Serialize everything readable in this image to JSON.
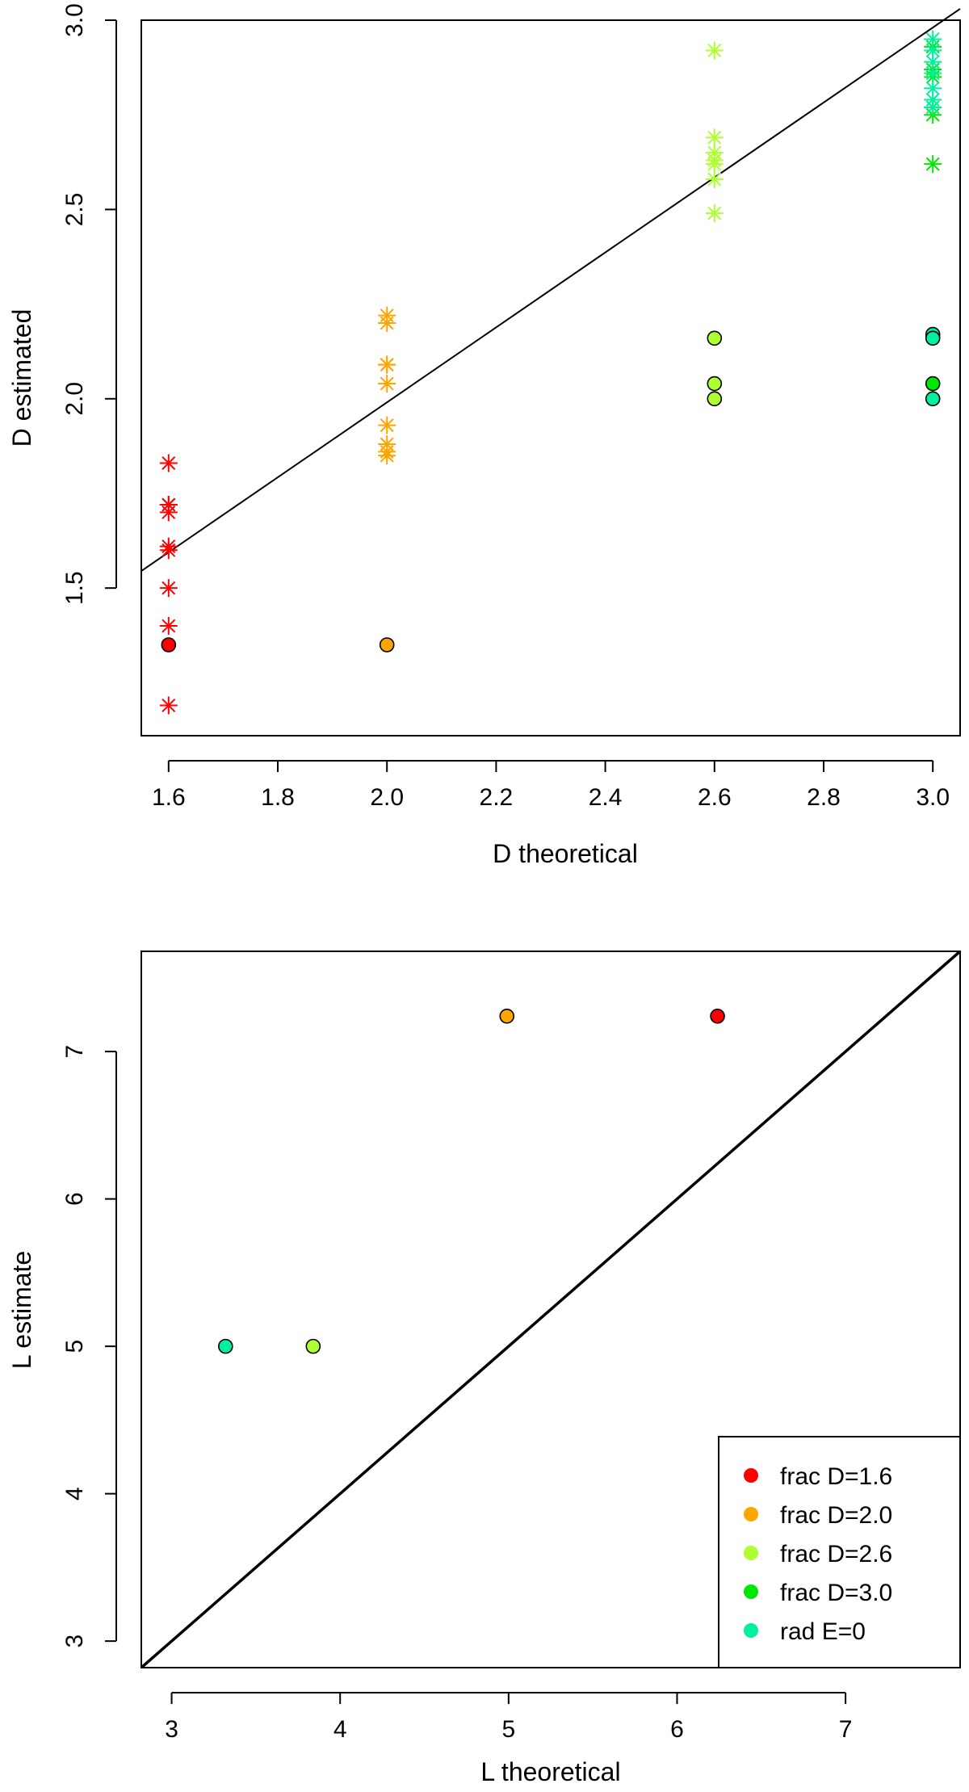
{
  "chart_data": [
    {
      "type": "scatter",
      "title": "",
      "xlabel": "D theoretical",
      "ylabel": "D estimated",
      "xlim": [
        1.55,
        3.05
      ],
      "ylim": [
        1.11,
        3.0
      ],
      "xticks": [
        "1.6",
        "1.8",
        "2.0",
        "2.2",
        "2.4",
        "2.6",
        "2.8",
        "3.0"
      ],
      "yticks": [
        "1.5",
        "2.0",
        "2.5",
        "3.0"
      ],
      "reference_line": {
        "x1": 1.55,
        "y1": 1.545,
        "x2": 3.05,
        "y2": 3.03
      },
      "colors": {
        "frac_1_6": "#ff0000",
        "frac_2_0": "#ffa500",
        "frac_2_6": "#adff2f",
        "frac_3_0": "#00e600",
        "rad_e_0": "#00f0a0"
      },
      "star_series": [
        {
          "name": "frac D=1.6",
          "color": "#ff0000",
          "x": 1.6,
          "values": [
            1.83,
            1.72,
            1.72,
            1.7,
            1.61,
            1.6,
            1.5,
            1.4,
            1.19
          ]
        },
        {
          "name": "frac D=2.0",
          "color": "#ffa500",
          "x": 2.0,
          "values": [
            2.22,
            2.2,
            2.09,
            2.09,
            2.04,
            1.93,
            1.88,
            1.86,
            1.85
          ]
        },
        {
          "name": "frac D=2.6",
          "color": "#adff2f",
          "x": 2.6,
          "values": [
            2.92,
            2.69,
            2.65,
            2.63,
            2.62,
            2.58,
            2.49
          ]
        },
        {
          "name": "frac D=3.0",
          "color": "#00e600",
          "x": 3.0,
          "values": [
            2.93,
            2.87,
            2.85,
            2.77,
            2.75,
            2.62
          ]
        },
        {
          "name": "rad E=0",
          "color": "#00f0a0",
          "x": 3.0,
          "values": [
            2.95,
            2.92,
            2.89,
            2.86,
            2.82,
            2.79,
            2.77
          ]
        }
      ],
      "circle_points": [
        {
          "name": "frac D=1.6",
          "color": "#ff0000",
          "x": 1.6,
          "y": 1.35
        },
        {
          "name": "frac D=2.0",
          "color": "#ffa500",
          "x": 2.0,
          "y": 1.35
        },
        {
          "name": "frac D=2.6",
          "color": "#adff2f",
          "x": 2.6,
          "y": 2.16
        },
        {
          "name": "frac D=2.6",
          "color": "#adff2f",
          "x": 2.6,
          "y": 2.04
        },
        {
          "name": "frac D=2.6",
          "color": "#adff2f",
          "x": 2.6,
          "y": 2.0
        },
        {
          "name": "rad E=0",
          "color": "#00f0a0",
          "x": 3.0,
          "y": 2.17
        },
        {
          "name": "rad E=0",
          "color": "#00f0a0",
          "x": 3.0,
          "y": 2.16
        },
        {
          "name": "frac D=3.0",
          "color": "#00e600",
          "x": 3.0,
          "y": 2.04
        },
        {
          "name": "rad E=0",
          "color": "#00f0a0",
          "x": 3.0,
          "y": 2.0
        }
      ]
    },
    {
      "type": "scatter",
      "title": "",
      "xlabel": "L theoretical",
      "ylabel": "L estimate",
      "xlim": [
        2.82,
        7.68
      ],
      "ylim": [
        2.82,
        7.68
      ],
      "xticks": [
        "3",
        "4",
        "5",
        "6",
        "7"
      ],
      "yticks": [
        "3",
        "4",
        "5",
        "6",
        "7"
      ],
      "reference_line": {
        "x1": 2.82,
        "y1": 2.82,
        "x2": 7.68,
        "y2": 7.68
      },
      "points": [
        {
          "name": "frac D=1.6",
          "color": "#ff0000",
          "x": 6.24,
          "y": 7.24
        },
        {
          "name": "frac D=2.0",
          "color": "#ffa500",
          "x": 4.99,
          "y": 7.24
        },
        {
          "name": "frac D=2.6",
          "color": "#adff2f",
          "x": 3.84,
          "y": 5.0
        },
        {
          "name": "rad E=0",
          "color": "#00f0a0",
          "x": 3.32,
          "y": 5.0
        }
      ],
      "legend": {
        "position": "bottom-right",
        "entries": [
          {
            "label": "frac D=1.6",
            "color": "#ff0000"
          },
          {
            "label": "frac D=2.0",
            "color": "#ffa500"
          },
          {
            "label": "frac D=2.6",
            "color": "#adff2f"
          },
          {
            "label": "frac D=3.0",
            "color": "#00e600"
          },
          {
            "label": "rad E=0",
            "color": "#00f0a0"
          }
        ]
      }
    }
  ]
}
